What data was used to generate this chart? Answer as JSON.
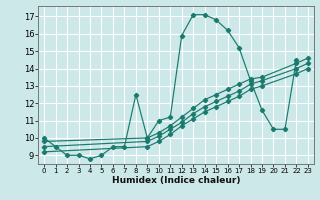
{
  "xlabel": "Humidex (Indice chaleur)",
  "bg_color": "#cce8e8",
  "grid_color": "#ffffff",
  "line_color": "#1a7a6e",
  "xlim": [
    -0.5,
    23.5
  ],
  "ylim": [
    8.5,
    17.6
  ],
  "xticks": [
    0,
    1,
    2,
    3,
    4,
    5,
    6,
    7,
    8,
    9,
    10,
    11,
    12,
    13,
    14,
    15,
    16,
    17,
    18,
    19,
    20,
    21,
    22,
    23
  ],
  "yticks": [
    9,
    10,
    11,
    12,
    13,
    14,
    15,
    16,
    17
  ],
  "curve1_x": [
    0,
    1,
    2,
    3,
    4,
    5,
    6,
    7,
    8,
    9,
    10,
    11,
    12,
    13,
    14,
    15,
    16,
    17,
    18,
    19,
    20,
    21,
    22
  ],
  "curve1_y": [
    10.0,
    9.5,
    9.0,
    9.0,
    8.8,
    9.0,
    9.5,
    9.5,
    12.5,
    10.0,
    11.0,
    11.2,
    15.9,
    17.1,
    17.1,
    16.8,
    16.2,
    15.2,
    13.3,
    11.6,
    10.5,
    10.5,
    14.5
  ],
  "line_a_x": [
    0,
    9,
    10,
    11,
    12,
    13,
    14,
    15,
    16,
    17,
    18,
    19,
    22,
    23
  ],
  "line_a_y": [
    9.8,
    10.0,
    10.3,
    10.7,
    11.2,
    11.7,
    12.2,
    12.5,
    12.8,
    13.1,
    13.4,
    13.5,
    14.3,
    14.6
  ],
  "line_b_x": [
    0,
    9,
    10,
    11,
    12,
    13,
    14,
    15,
    16,
    17,
    18,
    19,
    22,
    23
  ],
  "line_b_y": [
    9.5,
    9.8,
    10.1,
    10.5,
    10.9,
    11.4,
    11.8,
    12.1,
    12.4,
    12.7,
    13.1,
    13.3,
    14.0,
    14.3
  ],
  "line_c_x": [
    0,
    9,
    10,
    11,
    12,
    13,
    14,
    15,
    16,
    17,
    18,
    19,
    22,
    23
  ],
  "line_c_y": [
    9.2,
    9.5,
    9.8,
    10.2,
    10.7,
    11.1,
    11.5,
    11.8,
    12.1,
    12.4,
    12.8,
    13.0,
    13.7,
    14.0
  ]
}
